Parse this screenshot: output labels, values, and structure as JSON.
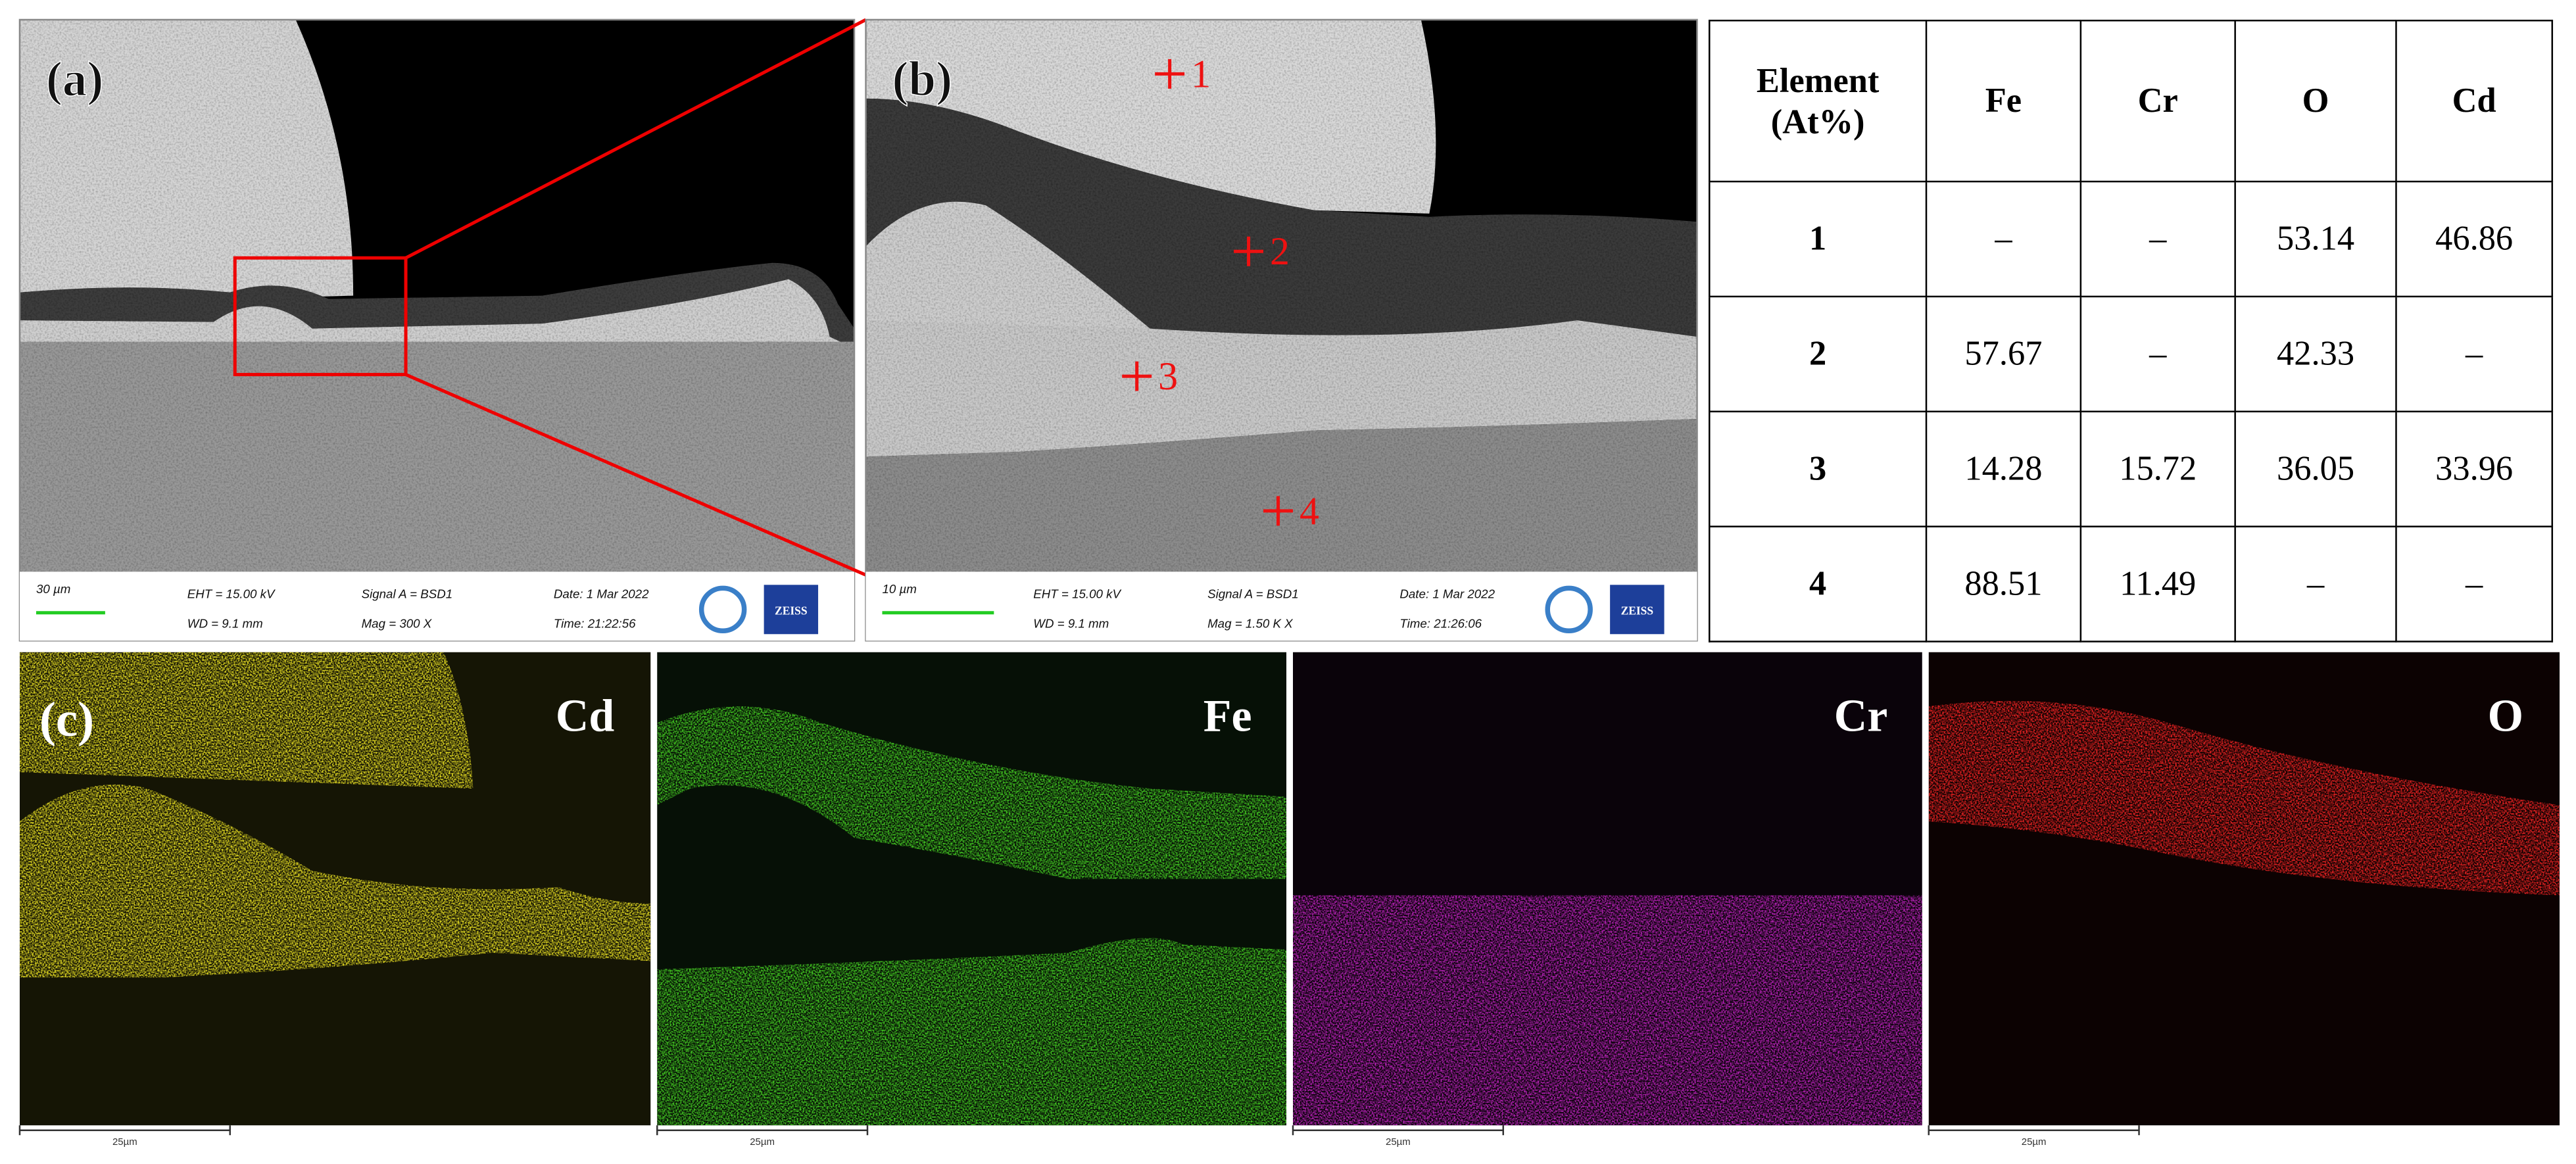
{
  "panel_labels": [
    "(a)",
    "(b)",
    "(c)"
  ],
  "sem": [
    {
      "scale": "30 µm",
      "eht": "EHT = 15.00 kV",
      "wd": "WD = 9.1 mm",
      "signal": "Signal A = BSD1",
      "mag": "Mag = 300 X",
      "date": "Date: 1 Mar 2022",
      "time": "Time: 21:22:56",
      "brand": "ZEISS"
    },
    {
      "scale": "10 µm",
      "eht": "EHT = 15.00 kV",
      "wd": "WD = 9.1 mm",
      "signal": "Signal A = BSD1",
      "mag": "Mag = 1.50 K X",
      "date": "Date: 1 Mar 2022",
      "time": "Time: 21:26:06",
      "brand": "ZEISS"
    }
  ],
  "points": [
    "1",
    "2",
    "3",
    "4"
  ],
  "table": {
    "header": [
      "Element (At%)",
      "Fe",
      "Cr",
      "O",
      "Cd"
    ],
    "rows": [
      [
        1,
        "–",
        "–",
        53.14,
        46.86
      ],
      [
        2,
        57.67,
        "–",
        42.33,
        "–"
      ],
      [
        3,
        14.28,
        15.72,
        36.05,
        33.96
      ],
      [
        4,
        88.51,
        11.49,
        "–",
        "–"
      ]
    ]
  },
  "maps": [
    {
      "element": "Cd",
      "scale": "25µm"
    },
    {
      "element": "Fe",
      "scale": "25µm"
    },
    {
      "element": "Cr",
      "scale": "25µm"
    },
    {
      "element": "O",
      "scale": "25µm"
    }
  ]
}
